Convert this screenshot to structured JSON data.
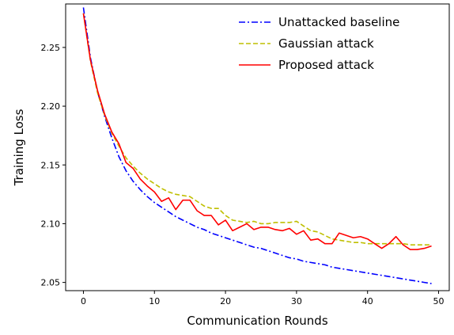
{
  "chart_data": {
    "type": "line",
    "xlabel": "Communication Rounds",
    "ylabel": "Training Loss",
    "xlim": [
      -2.5,
      51.5
    ],
    "ylim": [
      2.043,
      2.287
    ],
    "xticks": [
      "0",
      "10",
      "20",
      "30",
      "40",
      "50"
    ],
    "xtick_values": [
      0,
      10,
      20,
      30,
      40,
      50
    ],
    "yticks": [
      "2.05",
      "2.10",
      "2.15",
      "2.20",
      "2.25"
    ],
    "ytick_values": [
      2.05,
      2.1,
      2.15,
      2.2,
      2.25
    ],
    "grid": false,
    "legend_position": "top-right",
    "series": [
      {
        "name": "Unattacked baseline",
        "color": "#0000ff",
        "linestyle": "dashdot",
        "x": [
          0,
          1,
          2,
          3,
          4,
          5,
          6,
          7,
          8,
          9,
          10,
          11,
          12,
          13,
          14,
          15,
          16,
          17,
          18,
          19,
          20,
          21,
          22,
          23,
          24,
          25,
          26,
          27,
          28,
          29,
          30,
          31,
          32,
          33,
          34,
          35,
          36,
          37,
          38,
          39,
          40,
          41,
          42,
          43,
          44,
          45,
          46,
          47,
          48,
          49
        ],
        "y": [
          2.284,
          2.241,
          2.212,
          2.191,
          2.173,
          2.157,
          2.145,
          2.136,
          2.129,
          2.123,
          2.118,
          2.114,
          2.11,
          2.106,
          2.103,
          2.1,
          2.097,
          2.095,
          2.092,
          2.09,
          2.088,
          2.086,
          2.084,
          2.082,
          2.08,
          2.079,
          2.077,
          2.075,
          2.073,
          2.071,
          2.07,
          2.068,
          2.067,
          2.066,
          2.065,
          2.063,
          2.062,
          2.061,
          2.06,
          2.059,
          2.058,
          2.057,
          2.056,
          2.055,
          2.054,
          2.053,
          2.052,
          2.051,
          2.05,
          2.049
        ]
      },
      {
        "name": "Gaussian attack",
        "color": "#bfbf00",
        "linestyle": "dashed",
        "x": [
          0,
          1,
          2,
          3,
          4,
          5,
          6,
          7,
          8,
          9,
          10,
          11,
          12,
          13,
          14,
          15,
          16,
          17,
          18,
          19,
          20,
          21,
          22,
          23,
          24,
          25,
          26,
          27,
          28,
          29,
          30,
          31,
          32,
          33,
          34,
          35,
          36,
          37,
          38,
          39,
          40,
          41,
          42,
          43,
          44,
          45,
          46,
          47,
          48,
          49
        ],
        "y": [
          2.279,
          2.238,
          2.211,
          2.192,
          2.177,
          2.166,
          2.156,
          2.149,
          2.143,
          2.138,
          2.134,
          2.13,
          2.127,
          2.125,
          2.124,
          2.123,
          2.119,
          2.115,
          2.113,
          2.113,
          2.107,
          2.103,
          2.102,
          2.101,
          2.102,
          2.1,
          2.1,
          2.101,
          2.101,
          2.101,
          2.102,
          2.098,
          2.094,
          2.093,
          2.09,
          2.087,
          2.086,
          2.085,
          2.084,
          2.084,
          2.083,
          2.083,
          2.083,
          2.083,
          2.083,
          2.083,
          2.082,
          2.082,
          2.082,
          2.082
        ]
      },
      {
        "name": "Proposed attack",
        "color": "#ff0000",
        "linestyle": "solid",
        "x": [
          0,
          1,
          2,
          3,
          4,
          5,
          6,
          7,
          8,
          9,
          10,
          11,
          12,
          13,
          14,
          15,
          16,
          17,
          18,
          19,
          20,
          21,
          22,
          23,
          24,
          25,
          26,
          27,
          28,
          29,
          30,
          31,
          32,
          33,
          34,
          35,
          36,
          37,
          38,
          39,
          40,
          41,
          42,
          43,
          44,
          45,
          46,
          47,
          48,
          49
        ],
        "y": [
          2.279,
          2.239,
          2.213,
          2.193,
          2.178,
          2.168,
          2.152,
          2.147,
          2.138,
          2.132,
          2.127,
          2.119,
          2.122,
          2.112,
          2.12,
          2.12,
          2.111,
          2.107,
          2.107,
          2.099,
          2.103,
          2.094,
          2.097,
          2.1,
          2.095,
          2.097,
          2.097,
          2.095,
          2.094,
          2.096,
          2.091,
          2.094,
          2.086,
          2.087,
          2.083,
          2.083,
          2.092,
          2.09,
          2.088,
          2.089,
          2.087,
          2.083,
          2.079,
          2.083,
          2.089,
          2.082,
          2.078,
          2.078,
          2.079,
          2.081
        ]
      }
    ]
  }
}
